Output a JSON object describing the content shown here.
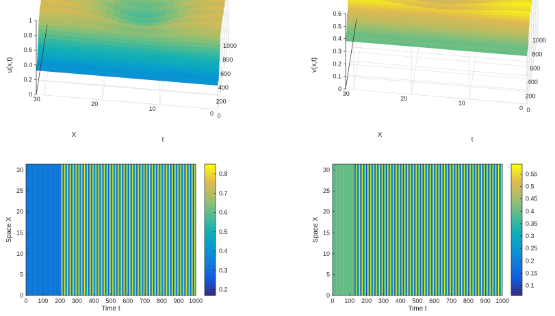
{
  "chart_data": [
    {
      "id": "surf-u",
      "type": "surface3d",
      "zlabel": "u(x,t)",
      "xlabel": "X",
      "ylabel": "t",
      "x_ticks": [
        0,
        10,
        20,
        30
      ],
      "t_ticks": [
        0,
        200,
        400,
        600,
        800,
        1000
      ],
      "z_ticks": [
        0,
        0.2,
        0.4,
        0.6,
        0.8,
        1
      ],
      "xlim": [
        0,
        31.4
      ],
      "tlim": [
        0,
        1000
      ],
      "zlim": [
        0,
        1
      ],
      "colormap": "parula"
    },
    {
      "id": "surf-v",
      "type": "surface3d",
      "zlabel": "v(x,t)",
      "xlabel": "X",
      "ylabel": "t",
      "x_ticks": [
        0,
        10,
        20,
        30
      ],
      "t_ticks": [
        0,
        200,
        400,
        600,
        800,
        1000
      ],
      "z_ticks": [
        0,
        0.1,
        0.2,
        0.3,
        0.4,
        0.5,
        0.6
      ],
      "xlim": [
        0,
        31.4
      ],
      "tlim": [
        0,
        1000
      ],
      "zlim": [
        0,
        0.6
      ],
      "colormap": "parula"
    },
    {
      "id": "heat-u",
      "type": "heatmap",
      "xlabel": "Time t",
      "ylabel": "Space X",
      "x_ticks": [
        0,
        100,
        200,
        300,
        400,
        500,
        600,
        700,
        800,
        900,
        1000
      ],
      "y_ticks": [
        0,
        5,
        10,
        15,
        20,
        25,
        30
      ],
      "colorbar_ticks": [
        0.2,
        0.3,
        0.4,
        0.5,
        0.6,
        0.7,
        0.8
      ],
      "xlim": [
        0,
        1000
      ],
      "ylim": [
        0,
        31.4
      ],
      "clim": [
        0.17,
        0.85
      ],
      "transient_end": 200,
      "transient_value": 0.32,
      "oscillation_min": 0.25,
      "oscillation_max": 0.82,
      "stripes": 48,
      "colormap": "parula"
    },
    {
      "id": "heat-v",
      "type": "heatmap",
      "xlabel": "Time t",
      "ylabel": "Space X",
      "x_ticks": [
        0,
        100,
        200,
        300,
        400,
        500,
        600,
        700,
        800,
        900,
        1000
      ],
      "y_ticks": [
        0,
        5,
        10,
        15,
        20,
        25,
        30
      ],
      "colorbar_ticks": [
        0.1,
        0.15,
        0.2,
        0.25,
        0.3,
        0.35,
        0.4,
        0.45,
        0.5,
        0.55
      ],
      "xlim": [
        0,
        1000
      ],
      "ylim": [
        0,
        31.4
      ],
      "clim": [
        0.06,
        0.59
      ],
      "transient_end": 130,
      "transient_value": 0.39,
      "oscillation_min": 0.1,
      "oscillation_max": 0.58,
      "stripes": 52,
      "colormap": "parula"
    }
  ]
}
